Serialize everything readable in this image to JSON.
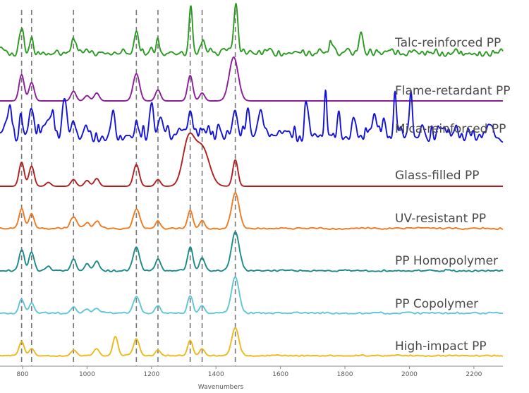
{
  "chart_data": {
    "type": "line",
    "title": "",
    "xlabel": "Wavenumbers",
    "ylabel": "",
    "xlim": [
      730,
      2290
    ],
    "x_ticks": [
      800,
      1000,
      1200,
      1400,
      1600,
      1800,
      2000,
      2200
    ],
    "x_tick_labels": [
      "800",
      "1000",
      "1200",
      "1400",
      "1600",
      "1800",
      "2000",
      "2200"
    ],
    "reference_lines": [
      797,
      828,
      958,
      1153,
      1220,
      1320,
      1357,
      1460
    ],
    "series": [
      {
        "name": "Talc-reinforced PP",
        "color": "#2a9a22",
        "noise": 0.14,
        "peaks": [
          {
            "x": 797,
            "h": 0.55,
            "w": 7
          },
          {
            "x": 828,
            "h": 0.25,
            "w": 6
          },
          {
            "x": 958,
            "h": 0.3,
            "w": 6
          },
          {
            "x": 1153,
            "h": 0.38,
            "w": 7
          },
          {
            "x": 1220,
            "h": 0.25,
            "w": 6
          },
          {
            "x": 1322,
            "h": 1.0,
            "w": 5
          },
          {
            "x": 1360,
            "h": 0.3,
            "w": 6
          },
          {
            "x": 1462,
            "h": 0.97,
            "w": 6
          },
          {
            "x": 1760,
            "h": 0.22,
            "w": 7
          },
          {
            "x": 1850,
            "h": 0.45,
            "w": 6
          }
        ]
      },
      {
        "name": "Flame-retardant PP",
        "color": "#8a1d98",
        "noise": 0.0,
        "peaks": [
          {
            "x": 797,
            "h": 0.6,
            "w": 8
          },
          {
            "x": 828,
            "h": 0.42,
            "w": 8
          },
          {
            "x": 958,
            "h": 0.22,
            "w": 8
          },
          {
            "x": 1000,
            "h": 0.12,
            "w": 8
          },
          {
            "x": 1030,
            "h": 0.18,
            "w": 8
          },
          {
            "x": 1153,
            "h": 0.62,
            "w": 10
          },
          {
            "x": 1220,
            "h": 0.25,
            "w": 8
          },
          {
            "x": 1320,
            "h": 0.58,
            "w": 8
          },
          {
            "x": 1357,
            "h": 0.18,
            "w": 8
          },
          {
            "x": 1455,
            "h": 1.0,
            "w": 14
          }
        ]
      },
      {
        "name": "Mica-reinforced PP",
        "color": "#1313d8",
        "noise": 0.3,
        "peaks": [
          {
            "x": 758,
            "h": 0.48,
            "w": 7
          },
          {
            "x": 797,
            "h": 0.36,
            "w": 7
          },
          {
            "x": 828,
            "h": 0.32,
            "w": 7
          },
          {
            "x": 890,
            "h": 0.5,
            "w": 7
          },
          {
            "x": 930,
            "h": 0.6,
            "w": 7
          },
          {
            "x": 958,
            "h": 0.38,
            "w": 7
          },
          {
            "x": 1080,
            "h": 0.42,
            "w": 7
          },
          {
            "x": 1153,
            "h": 0.32,
            "w": 7
          },
          {
            "x": 1200,
            "h": 0.5,
            "w": 6
          },
          {
            "x": 1230,
            "h": 0.42,
            "w": 6
          },
          {
            "x": 1320,
            "h": 0.62,
            "w": 6
          },
          {
            "x": 1460,
            "h": 0.48,
            "w": 6
          },
          {
            "x": 1500,
            "h": 0.5,
            "w": 6
          },
          {
            "x": 1540,
            "h": 0.38,
            "w": 6
          },
          {
            "x": 1680,
            "h": 0.6,
            "w": 5
          },
          {
            "x": 1740,
            "h": 0.98,
            "w": 4
          },
          {
            "x": 1780,
            "h": 0.5,
            "w": 5
          },
          {
            "x": 1830,
            "h": 0.32,
            "w": 5
          },
          {
            "x": 1890,
            "h": 0.38,
            "w": 5
          },
          {
            "x": 1920,
            "h": 0.5,
            "w": 5
          },
          {
            "x": 1955,
            "h": 0.75,
            "w": 4
          },
          {
            "x": 2005,
            "h": 0.68,
            "w": 4
          }
        ]
      },
      {
        "name": "Glass-filled PP",
        "color": "#b01e1e",
        "noise": 0.0,
        "peaks": [
          {
            "x": 797,
            "h": 0.5,
            "w": 8
          },
          {
            "x": 828,
            "h": 0.42,
            "w": 8
          },
          {
            "x": 880,
            "h": 0.08,
            "w": 8
          },
          {
            "x": 958,
            "h": 0.14,
            "w": 8
          },
          {
            "x": 1000,
            "h": 0.12,
            "w": 8
          },
          {
            "x": 1030,
            "h": 0.16,
            "w": 8
          },
          {
            "x": 1153,
            "h": 0.45,
            "w": 9
          },
          {
            "x": 1220,
            "h": 0.14,
            "w": 8
          },
          {
            "x": 1315,
            "h": 0.95,
            "w": 18
          },
          {
            "x": 1357,
            "h": 0.8,
            "w": 22
          },
          {
            "x": 1460,
            "h": 0.55,
            "w": 8
          }
        ]
      },
      {
        "name": "UV-resistant PP",
        "color": "#ee7a22",
        "noise": 0.04,
        "peaks": [
          {
            "x": 797,
            "h": 0.55,
            "w": 8
          },
          {
            "x": 828,
            "h": 0.4,
            "w": 8
          },
          {
            "x": 958,
            "h": 0.32,
            "w": 10
          },
          {
            "x": 1000,
            "h": 0.18,
            "w": 8
          },
          {
            "x": 1030,
            "h": 0.2,
            "w": 8
          },
          {
            "x": 1153,
            "h": 0.55,
            "w": 10
          },
          {
            "x": 1220,
            "h": 0.2,
            "w": 8
          },
          {
            "x": 1320,
            "h": 0.52,
            "w": 8
          },
          {
            "x": 1357,
            "h": 0.2,
            "w": 8
          },
          {
            "x": 1460,
            "h": 1.0,
            "w": 12
          }
        ]
      },
      {
        "name": "PP Homopolymer",
        "color": "#1b8a8a",
        "noise": 0.04,
        "peaks": [
          {
            "x": 797,
            "h": 0.55,
            "w": 8
          },
          {
            "x": 828,
            "h": 0.5,
            "w": 8
          },
          {
            "x": 880,
            "h": 0.12,
            "w": 8
          },
          {
            "x": 958,
            "h": 0.3,
            "w": 8
          },
          {
            "x": 1000,
            "h": 0.18,
            "w": 8
          },
          {
            "x": 1030,
            "h": 0.22,
            "w": 8
          },
          {
            "x": 1153,
            "h": 0.62,
            "w": 10
          },
          {
            "x": 1220,
            "h": 0.28,
            "w": 8
          },
          {
            "x": 1320,
            "h": 0.6,
            "w": 8
          },
          {
            "x": 1357,
            "h": 0.3,
            "w": 8
          },
          {
            "x": 1460,
            "h": 1.0,
            "w": 12
          }
        ]
      },
      {
        "name": "PP Copolymer",
        "color": "#5fc6d8",
        "noise": 0.04,
        "peaks": [
          {
            "x": 797,
            "h": 0.4,
            "w": 8
          },
          {
            "x": 828,
            "h": 0.3,
            "w": 8
          },
          {
            "x": 958,
            "h": 0.18,
            "w": 8
          },
          {
            "x": 1000,
            "h": 0.12,
            "w": 8
          },
          {
            "x": 1030,
            "h": 0.14,
            "w": 8
          },
          {
            "x": 1153,
            "h": 0.48,
            "w": 10
          },
          {
            "x": 1220,
            "h": 0.22,
            "w": 8
          },
          {
            "x": 1320,
            "h": 0.5,
            "w": 8
          },
          {
            "x": 1357,
            "h": 0.22,
            "w": 8
          },
          {
            "x": 1460,
            "h": 1.0,
            "w": 12
          }
        ]
      },
      {
        "name": "High-impact PP",
        "color": "#eeb81a",
        "noise": 0.03,
        "peaks": [
          {
            "x": 797,
            "h": 0.38,
            "w": 8
          },
          {
            "x": 828,
            "h": 0.2,
            "w": 8
          },
          {
            "x": 958,
            "h": 0.14,
            "w": 8
          },
          {
            "x": 1030,
            "h": 0.18,
            "w": 8
          },
          {
            "x": 1088,
            "h": 0.55,
            "w": 8
          },
          {
            "x": 1153,
            "h": 0.48,
            "w": 9
          },
          {
            "x": 1220,
            "h": 0.16,
            "w": 8
          },
          {
            "x": 1320,
            "h": 0.42,
            "w": 8
          },
          {
            "x": 1357,
            "h": 0.2,
            "w": 8
          },
          {
            "x": 1460,
            "h": 0.8,
            "w": 11
          }
        ]
      }
    ]
  }
}
